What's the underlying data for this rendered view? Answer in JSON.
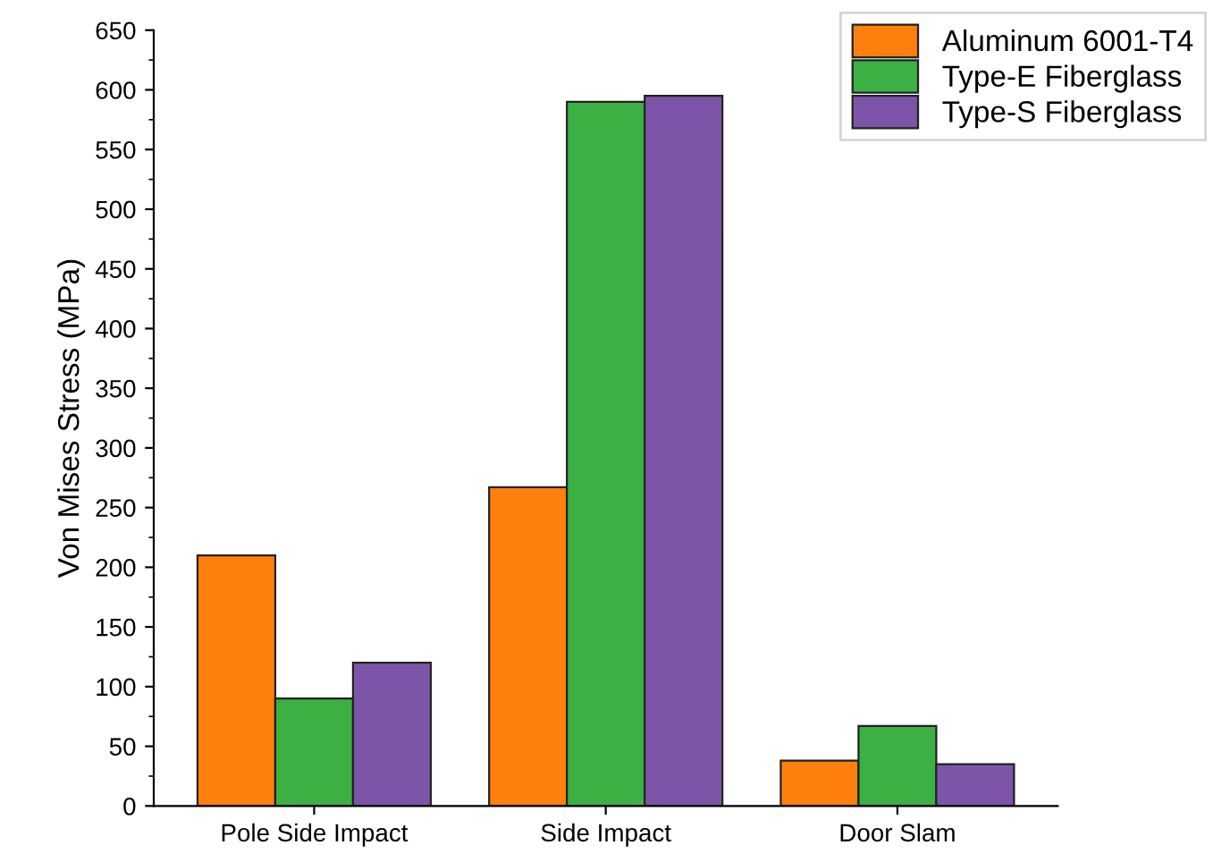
{
  "chart_data": {
    "type": "bar",
    "ylabel": "Von Mises Stress (MPa)",
    "categories": [
      "Pole Side Impact",
      "Side Impact",
      "Door Slam"
    ],
    "series": [
      {
        "name": "Aluminum 6001-T4",
        "color": "#ff7f0e",
        "values": [
          210,
          267,
          38
        ]
      },
      {
        "name": "Type-E Fiberglass",
        "color": "#3cb043",
        "values": [
          90,
          590,
          67
        ]
      },
      {
        "name": "Type-S Fiberglass",
        "color": "#7d55a8",
        "values": [
          120,
          595,
          35
        ]
      }
    ],
    "ylim": [
      0,
      650
    ],
    "yticks": [
      0,
      50,
      100,
      150,
      200,
      250,
      300,
      350,
      400,
      450,
      500,
      550,
      600,
      650
    ],
    "grid": false,
    "legend": "top right"
  }
}
